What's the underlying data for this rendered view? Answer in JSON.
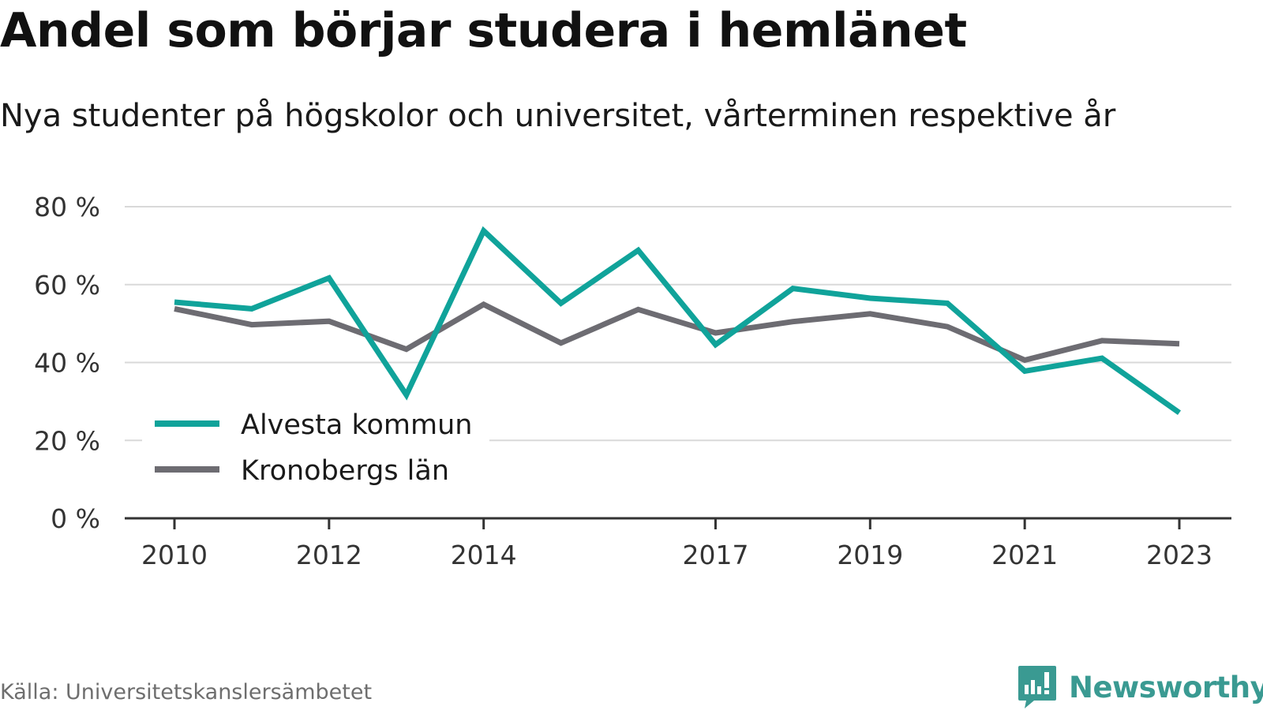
{
  "title": "Andel som börjar studera i hemlänet",
  "subtitle": "Nya studenter på högskolor och universitet, vårterminen respektive år",
  "source": "Källa: Universitetskanslersämbetet",
  "brand": {
    "name": "Newsworthy",
    "icon": "newsworthy-logo-icon"
  },
  "colors": {
    "alvesta": "#10a39a",
    "kronoberg": "#6d6c72",
    "grid": "#d9d9d9",
    "axis": "#333333",
    "brand": "#3a9a92"
  },
  "chart_data": {
    "type": "line",
    "ylim": [
      0,
      80
    ],
    "y_ticks": [
      0,
      20,
      40,
      60,
      80
    ],
    "y_tick_labels": [
      "0 %",
      "20 %",
      "40 %",
      "60 %",
      "80 %"
    ],
    "x_ticks": [
      2010,
      2012,
      2014,
      2017,
      2019,
      2021,
      2023
    ],
    "x_tick_labels": [
      "2010",
      "2012",
      "2014",
      "2017",
      "2019",
      "2021",
      "2023"
    ],
    "grid": true,
    "legend_position": "bottom-left",
    "x": [
      2010,
      2011,
      2012,
      2013,
      2014,
      2015,
      2016,
      2017,
      2018,
      2019,
      2020,
      2021,
      2022,
      2023
    ],
    "series": [
      {
        "name": "Alvesta kommun",
        "values": [
          55.5,
          53.8,
          61.7,
          31.7,
          73.8,
          55.2,
          68.8,
          44.6,
          59.0,
          56.5,
          55.2,
          37.8,
          41.1,
          27.1
        ]
      },
      {
        "name": "Kronobergs län",
        "values": [
          53.8,
          49.7,
          50.6,
          43.4,
          54.9,
          45.0,
          53.6,
          47.6,
          50.5,
          52.5,
          49.2,
          40.6,
          45.6,
          44.8
        ]
      }
    ]
  }
}
